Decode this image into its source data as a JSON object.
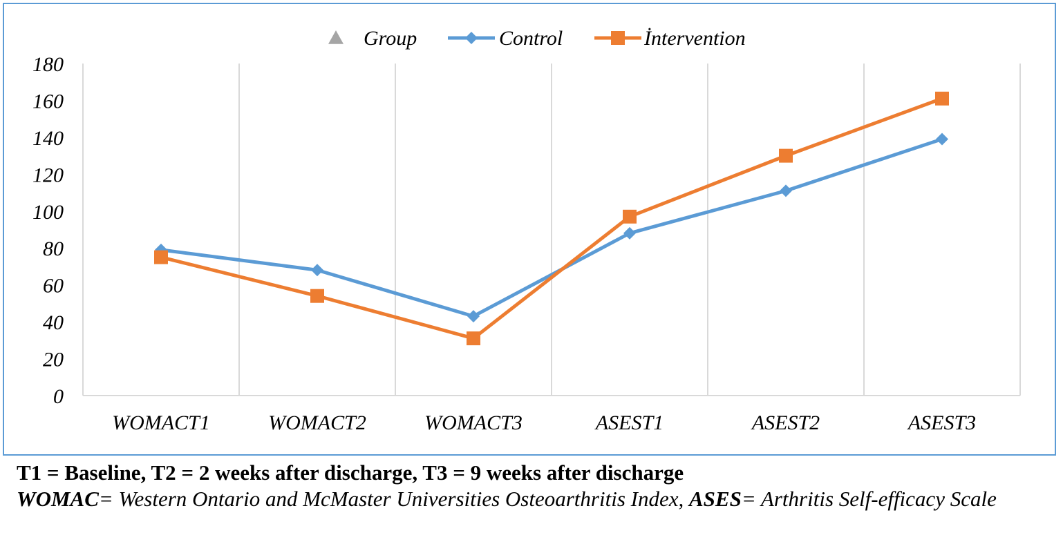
{
  "chart_data": {
    "type": "line",
    "categories": [
      "WOMACT1",
      "WOMACT2",
      "WOMACT3",
      "ASEST1",
      "ASEST2",
      "ASEST3"
    ],
    "ylim": [
      0,
      180
    ],
    "yticks": [
      0,
      20,
      40,
      60,
      80,
      100,
      120,
      140,
      160,
      180
    ],
    "grid": "vertical",
    "legend_position": "top-center",
    "legend": [
      {
        "name": "Group",
        "marker": "triangle",
        "color": "#a5a5a5"
      },
      {
        "name": "Control",
        "marker": "diamond",
        "color": "#5b9bd5"
      },
      {
        "name": "İntervention",
        "marker": "square",
        "color": "#ed7d31"
      }
    ],
    "series": [
      {
        "name": "Control",
        "color": "#5b9bd5",
        "marker": "diamond",
        "values": [
          79,
          68,
          43,
          88,
          111,
          139
        ]
      },
      {
        "name": "İntervention",
        "color": "#ed7d31",
        "marker": "square",
        "values": [
          75,
          54,
          31,
          97,
          130,
          161
        ]
      }
    ]
  },
  "caption": {
    "line1": "T1 = Baseline, T2 = 2 weeks after discharge, T3 = 9 weeks after discharge",
    "womac_abbr": "WOMAC",
    "womac_def": "= Western Ontario and McMaster Universities Osteoarthritis Index, ",
    "ases_abbr": "ASES",
    "ases_def": "= Arthritis Self-efficacy Scale"
  }
}
